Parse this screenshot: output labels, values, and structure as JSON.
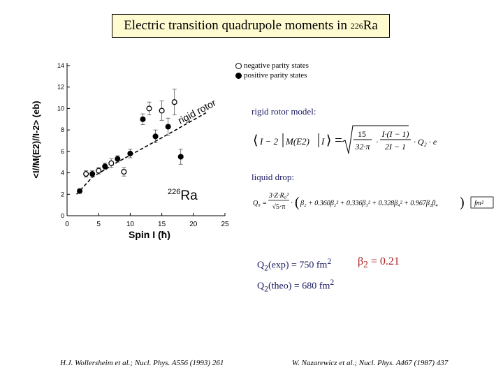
{
  "title": {
    "text": "Electric transition quadrupole moments in ",
    "sup": "226",
    "tail": "Ra"
  },
  "legend": {
    "open": "negative parity states",
    "filled": "positive parity states"
  },
  "rigid_label": "rigid rotor model:",
  "liquid_label": "liquid drop:",
  "q2_exp": {
    "base": "Q",
    "sub": "2",
    "mid": "(exp) = 750 fm",
    "sup": "2"
  },
  "q2_theo": {
    "base": "Q",
    "sub": "2",
    "mid": "(theo) = 680 fm",
    "sup": "2"
  },
  "beta": {
    "base": "β",
    "sub": "2",
    "tail": " = 0.21"
  },
  "ref_left": "H.J. Wollersheim et al.; Nucl. Phys. A556 (1993) 261",
  "ref_right": "W. Nazarewicz et al.; Nucl. Phys. A467 (1987) 437",
  "chart_data": {
    "type": "scatter",
    "xlabel": "Spin I (ħ)",
    "ylabel": "<I//M(E2)//I-2> (eb)",
    "xlim": [
      0,
      25
    ],
    "ylim": [
      0,
      14
    ],
    "xticks": [
      "0",
      "5",
      "10",
      "15",
      "20",
      "25"
    ],
    "yticks": [
      "0",
      "2",
      "4",
      "6",
      "8",
      "10",
      "12",
      "14"
    ],
    "curve_label": "rigid rotor",
    "nucleus_label": {
      "sup": "226",
      "text": "Ra"
    },
    "series": [
      {
        "name": "positive parity states",
        "marker": "filled",
        "points": [
          [
            2,
            2.3
          ],
          [
            4,
            3.9
          ],
          [
            6,
            4.6
          ],
          [
            8,
            5.3
          ],
          [
            10,
            5.8
          ],
          [
            12,
            9.0
          ],
          [
            14,
            7.4
          ],
          [
            16,
            8.3
          ],
          [
            18,
            5.5
          ]
        ],
        "errors": [
          0.2,
          0.3,
          0.3,
          0.3,
          0.4,
          0.5,
          0.6,
          0.8,
          0.7
        ]
      },
      {
        "name": "negative parity states",
        "marker": "open",
        "points": [
          [
            3,
            3.9
          ],
          [
            5,
            4.2
          ],
          [
            7,
            4.9
          ],
          [
            9,
            4.1
          ],
          [
            13,
            10.0
          ],
          [
            15,
            9.8
          ],
          [
            17,
            10.6
          ]
        ],
        "errors": [
          0.3,
          0.3,
          0.4,
          0.4,
          0.6,
          0.9,
          1.2
        ]
      }
    ],
    "model_curve": [
      [
        1.5,
        2.0
      ],
      [
        4,
        3.6
      ],
      [
        8,
        5.0
      ],
      [
        12,
        6.3
      ],
      [
        16,
        7.6
      ],
      [
        19,
        8.6
      ],
      [
        22,
        9.6
      ]
    ]
  }
}
